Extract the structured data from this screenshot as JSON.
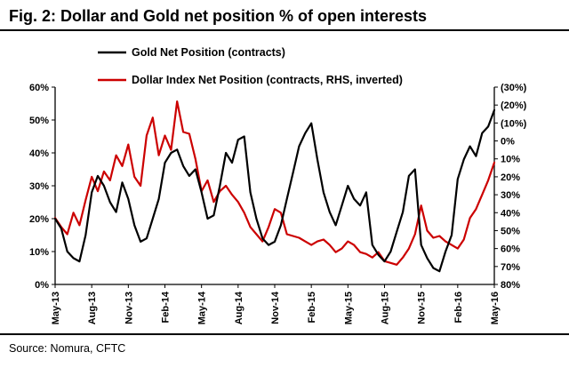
{
  "title": "Fig. 2: Dollar and Gold net position % of open interests",
  "source": "Source: Nomura, CFTC",
  "chart_data": {
    "type": "line",
    "title": "Fig. 2: Dollar and Gold net position % of open interests",
    "x_tick_labels": [
      "May-13",
      "Aug-13",
      "Nov-13",
      "Feb-14",
      "May-14",
      "Aug-14",
      "Nov-14",
      "Feb-15",
      "May-15",
      "Aug-15",
      "Nov-15",
      "Feb-16",
      "May-16"
    ],
    "left_axis": {
      "min": 0,
      "max": 60,
      "tick_values": [
        0,
        10,
        20,
        30,
        40,
        50,
        60
      ],
      "tick_labels": [
        "0%",
        "10%",
        "20%",
        "30%",
        "40%",
        "50%",
        "60%"
      ]
    },
    "right_axis": {
      "min": -30,
      "max": 80,
      "inverted": true,
      "tick_values": [
        -30,
        -20,
        -10,
        0,
        10,
        20,
        30,
        40,
        50,
        60,
        70,
        80
      ],
      "tick_labels": [
        "(30%)",
        "(20%)",
        "(10%)",
        "0%",
        "10%",
        "20%",
        "30%",
        "40%",
        "50%",
        "60%",
        "70%",
        "80%"
      ],
      "negative_color": "#cc0000"
    },
    "grid": false,
    "legend_position": "top-left",
    "series": [
      {
        "name": "Gold Net Position (contracts)",
        "axis": "left",
        "color": "#000000",
        "values": [
          20,
          17,
          10,
          8,
          7,
          15,
          28,
          33,
          30,
          25,
          22,
          31,
          26,
          18,
          13,
          14,
          20,
          26,
          37,
          40,
          41,
          36,
          33,
          35,
          28,
          20,
          21,
          30,
          40,
          37,
          44,
          45,
          28,
          20,
          14,
          12,
          13,
          18,
          26,
          34,
          42,
          46,
          49,
          38,
          28,
          22,
          18,
          24,
          30,
          26,
          24,
          28,
          12,
          9,
          7,
          10,
          16,
          22,
          33,
          35,
          12,
          8,
          5,
          4,
          10,
          15,
          32,
          38,
          42,
          39,
          46,
          48,
          53
        ]
      },
      {
        "name": "Dollar Index Net Position (contracts, RHS, inverted)",
        "axis": "right",
        "color": "#cc0000",
        "values": [
          43,
          48,
          52,
          40,
          47,
          33,
          20,
          28,
          17,
          22,
          8,
          14,
          2,
          20,
          25,
          -3,
          -13,
          8,
          -3,
          5,
          -22,
          -5,
          -4,
          10,
          28,
          22,
          34,
          28,
          25,
          30,
          34,
          40,
          48,
          52,
          56,
          48,
          38,
          40,
          52,
          53,
          54,
          56,
          58,
          56,
          55,
          58,
          62,
          60,
          56,
          58,
          62,
          63,
          65,
          62,
          67,
          68,
          69,
          65,
          60,
          52,
          36,
          50,
          54,
          53,
          56,
          58,
          60,
          55,
          43,
          38,
          30,
          22,
          12
        ]
      }
    ]
  }
}
